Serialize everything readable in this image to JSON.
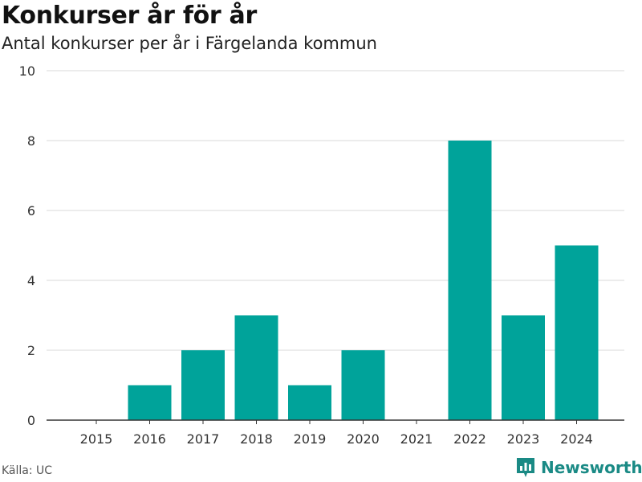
{
  "header": {
    "title": "Konkurser år för år",
    "subtitle": "Antal konkurser per år i Färgelanda kommun"
  },
  "footer": {
    "source": "Källa: UC",
    "brand": "Newsworthy"
  },
  "colors": {
    "bar": "#00a39a",
    "grid": "#d9d9d9",
    "axis": "#333333",
    "brand": "#1a8a85"
  },
  "chart_data": {
    "type": "bar",
    "title": "Konkurser år för år",
    "subtitle": "Antal konkurser per år i Färgelanda kommun",
    "categories": [
      "2015",
      "2016",
      "2017",
      "2018",
      "2019",
      "2020",
      "2021",
      "2022",
      "2023",
      "2024"
    ],
    "values": [
      0,
      1,
      2,
      3,
      1,
      2,
      0,
      8,
      3,
      5
    ],
    "ylim": [
      0,
      10
    ],
    "yticks": [
      0,
      2,
      4,
      6,
      8,
      10
    ],
    "xlabel": "",
    "ylabel": "",
    "grid": true
  }
}
